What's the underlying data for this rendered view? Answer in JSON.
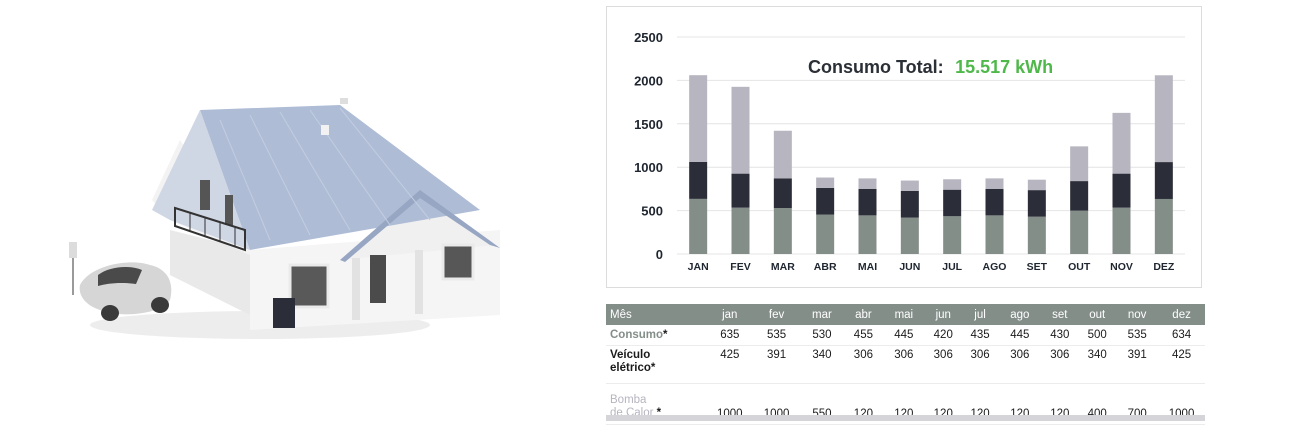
{
  "colors": {
    "consumo": "#848e89",
    "veiculo": "#2b2d38",
    "bomba": "#b6b5c0",
    "accent": "#4fb84a",
    "header_bg": "#848e89"
  },
  "illustration": {
    "subject": "house-with-electric-car-and-heat-pump"
  },
  "chart_data": {
    "type": "bar",
    "stacked": true,
    "title": "Consumo Total:",
    "title_value": "15.517 kWh",
    "categories": [
      "JAN",
      "FEV",
      "MAR",
      "ABR",
      "MAI",
      "JUN",
      "JUL",
      "AGO",
      "SET",
      "OUT",
      "NOV",
      "DEZ"
    ],
    "series": [
      {
        "values": [
          635,
          535,
          530,
          455,
          445,
          420,
          435,
          445,
          430,
          500,
          535,
          634
        ]
      },
      {
        "values": [
          425,
          391,
          340,
          306,
          306,
          306,
          306,
          306,
          306,
          340,
          391,
          425
        ]
      },
      {
        "values": [
          1000,
          1000,
          550,
          120,
          120,
          120,
          120,
          120,
          120,
          400,
          700,
          1000
        ]
      }
    ],
    "ylim": [
      0,
      2500
    ],
    "yticks": [
      "0",
      "500",
      "1000",
      "1500",
      "2000",
      "2500"
    ],
    "grid": true,
    "legend": "none"
  },
  "table": {
    "header_label": "Mês",
    "months": [
      "jan",
      "fev",
      "mar",
      "abr",
      "mai",
      "jun",
      "jul",
      "ago",
      "set",
      "out",
      "nov",
      "dez"
    ],
    "rows": [
      {
        "label_line1": "Consumo",
        "label_line2": "",
        "star": "*",
        "cls": "consumo",
        "values": [
          "635",
          "535",
          "530",
          "455",
          "445",
          "420",
          "435",
          "445",
          "430",
          "500",
          "535",
          "634"
        ]
      },
      {
        "label_line1": "Veículo",
        "label_line2": "elétrico*",
        "star": "",
        "cls": "ev",
        "values": [
          "425",
          "391",
          "340",
          "306",
          "306",
          "306",
          "306",
          "306",
          "306",
          "340",
          "391",
          "425"
        ]
      },
      {
        "label_line1": "Bomba",
        "label_line2": "de Calor",
        "star": "*",
        "cls": "hp",
        "values": [
          "1000",
          "1000",
          "550",
          "120",
          "120",
          "120",
          "120",
          "120",
          "120",
          "400",
          "700",
          "1000"
        ]
      }
    ]
  }
}
